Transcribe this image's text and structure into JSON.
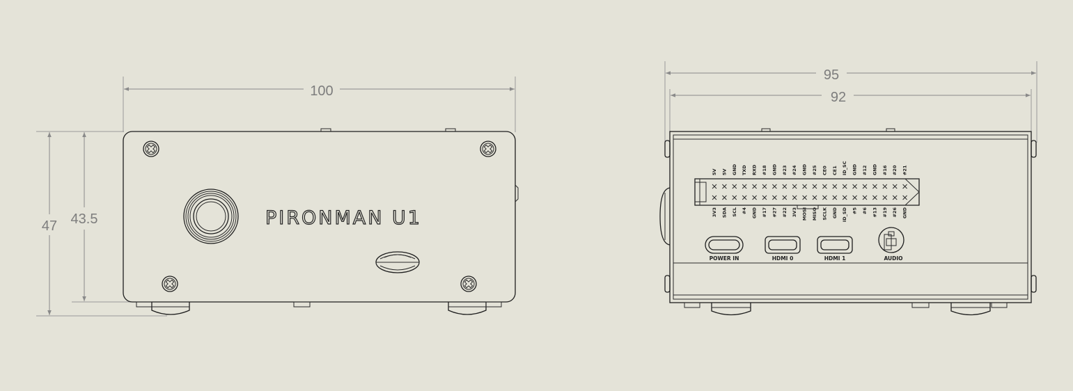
{
  "dimensions": {
    "front_width": "100",
    "front_height_outer": "47",
    "front_height_inner": "43.5",
    "side_width_outer": "95",
    "side_width_inner": "92"
  },
  "brand_text": "PIRONMAN U1",
  "gpio": {
    "top_labels": [
      "5V",
      "5V",
      "GND",
      "TXD",
      "RXD",
      "#18",
      "GND",
      "#23",
      "#24",
      "GND",
      "#25",
      "CE0",
      "CE1",
      "ID_SC",
      "GND",
      "#12",
      "GND",
      "#16",
      "#20",
      "#21"
    ],
    "bottom_labels": [
      "3V3",
      "SDA",
      "SCL",
      "#4",
      "GND",
      "#17",
      "#27",
      "#22",
      "3V3",
      "MOSI",
      "MISO",
      "SCLK",
      "GND",
      "ID_SD",
      "#5",
      "#6",
      "#13",
      "#19",
      "#26",
      "GND"
    ]
  },
  "ports": {
    "power": "POWER IN",
    "hdmi0": "HDMI 0",
    "hdmi1": "HDMI 1",
    "audio": "AUDIO"
  }
}
